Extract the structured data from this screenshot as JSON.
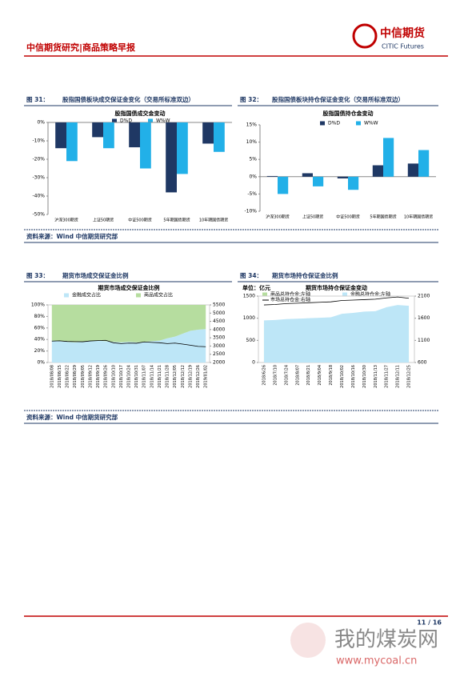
{
  "header": {
    "title": "中信期货研究|商品策略早报",
    "logo_cn": "中信期货",
    "logo_en": "CITIC Futures"
  },
  "figures": [
    {
      "label": "图 31：",
      "title": "股指国债板块成交保证金变化（交易所标准双边）"
    },
    {
      "label": "图 32：",
      "title": "股指国债板块持仓保证金变化（交易所标准双边）"
    },
    {
      "label": "图 33：",
      "title": "期货市场成交保证金比例"
    },
    {
      "label": "图 34：",
      "title": "期货市场持仓保证金比例"
    }
  ],
  "sources": [
    "资料来源：Wind  中信期货研究部",
    "资料来源：Wind  中信期货研究部"
  ],
  "page_number": "11 / 16",
  "watermark": {
    "cn": "我的煤炭网",
    "url": "www.mycoal.cn"
  },
  "chart_data": [
    {
      "type": "bar",
      "title": "股指国债成交金变动",
      "categories": [
        "沪深300期货",
        "上证50期货",
        "中证500期货",
        "5年期国债期货",
        "10年期国债期货"
      ],
      "series": [
        {
          "name": "D%D",
          "color": "#1f3864",
          "values": [
            -14,
            -8,
            -13.5,
            -38,
            -11.5
          ]
        },
        {
          "name": "W%W",
          "color": "#22b0e8",
          "values": [
            -21,
            -14,
            -25,
            -28,
            -16
          ]
        }
      ],
      "ylim": [
        -50,
        0
      ],
      "yticks": [
        {
          "value": -50,
          "label": "-50%"
        },
        {
          "value": -40,
          "label": "-40%"
        },
        {
          "value": -30,
          "label": "-30%"
        },
        {
          "value": -20,
          "label": "-20%"
        },
        {
          "value": -10,
          "label": "-10%"
        },
        {
          "value": 0,
          "label": "0%"
        }
      ]
    },
    {
      "type": "bar",
      "title": "股指国债持仓金变动",
      "categories": [
        "沪深300期货",
        "上证50期货",
        "中证500期货",
        "5年期国债期货",
        "10年期国债期货"
      ],
      "series": [
        {
          "name": "D%D",
          "color": "#1f3864",
          "values": [
            0.2,
            1,
            -0.5,
            3.3,
            3.8
          ]
        },
        {
          "name": "W%W",
          "color": "#22b0e8",
          "values": [
            -5,
            -2.8,
            -3.8,
            11.2,
            7.7
          ]
        }
      ],
      "ylim": [
        -10,
        15
      ],
      "yticks": [
        {
          "value": -10,
          "label": "-10%"
        },
        {
          "value": -5,
          "label": "-5%"
        },
        {
          "value": 0,
          "label": "0%"
        },
        {
          "value": 5,
          "label": "5%"
        },
        {
          "value": 10,
          "label": "10%"
        },
        {
          "value": 15,
          "label": "15%"
        }
      ]
    },
    {
      "type": "area",
      "title": "期货市场成交保证金比例",
      "stacked": true,
      "categories": [
        "2018/08/08",
        "2018/08/15",
        "2018/08/22",
        "2018/08/29",
        "2018/09/05",
        "2018/09/12",
        "2018/09/19",
        "2018/09/26",
        "2018/10/10",
        "2018/10/17",
        "2018/10/24",
        "2018/10/31",
        "2018/11/07",
        "2018/11/14",
        "2018/11/21",
        "2018/11/28",
        "2018/12/05",
        "2018/12/12",
        "2018/12/19",
        "2018/12/26",
        "2019/01/02"
      ],
      "series": [
        {
          "name": "金融成交占比",
          "color": "#bde6f7",
          "values": [
            38,
            37,
            36,
            35,
            36,
            37,
            38,
            37,
            36,
            35,
            36,
            35,
            36,
            37,
            38,
            42,
            45,
            50,
            55,
            57,
            58
          ]
        },
        {
          "name": "商品成交占比",
          "color": "#b6dd9f",
          "values": [
            62,
            63,
            64,
            65,
            64,
            63,
            62,
            63,
            64,
            65,
            64,
            65,
            64,
            63,
            62,
            58,
            55,
            50,
            45,
            43,
            42
          ]
        },
        {
          "kind": "line",
          "axis": "y2",
          "color": "#000000",
          "values": [
            3300,
            3320,
            3280,
            3270,
            3260,
            3310,
            3330,
            3350,
            3200,
            3150,
            3180,
            3170,
            3250,
            3220,
            3200,
            3150,
            3180,
            3120,
            3050,
            2980,
            2960
          ]
        }
      ],
      "ylim": [
        0,
        100
      ],
      "yticks": [
        {
          "value": 0,
          "label": "0%"
        },
        {
          "value": 20,
          "label": "20%"
        },
        {
          "value": 40,
          "label": "40%"
        },
        {
          "value": 60,
          "label": "60%"
        },
        {
          "value": 80,
          "label": "80%"
        },
        {
          "value": 100,
          "label": "100%"
        }
      ],
      "y2lim": [
        2000,
        5500
      ],
      "y2ticks": [
        2000,
        2500,
        3000,
        3500,
        4000,
        4500,
        5000,
        5500
      ]
    },
    {
      "type": "area",
      "title": "期货市场持仓保证金变动",
      "unit_label": "单位：亿元",
      "stacked": false,
      "categories": [
        "2018/6/26",
        "2018/7/10",
        "2018/7/24",
        "2018/8/07",
        "2018/8/21",
        "2018/9/04",
        "2018/9/18",
        "2018/10/02",
        "2018/10/16",
        "2018/10/30",
        "2018/11/13",
        "2018/11/27",
        "2018/12/11",
        "2018/12/25"
      ],
      "series": [
        {
          "name": "商品总持仓金:左轴",
          "color": "#b6dd9f",
          "values": [
            880,
            890,
            900,
            910,
            920,
            930,
            940,
            1000,
            1010,
            1020,
            1030,
            1100,
            1150,
            1120
          ]
        },
        {
          "name": "金融总持仓金:左轴",
          "color": "#bde6f7",
          "values": [
            950,
            960,
            980,
            990,
            1000,
            1010,
            1020,
            1100,
            1120,
            1150,
            1160,
            1250,
            1300,
            1280
          ]
        },
        {
          "name": "市场总持仓金:右轴",
          "kind": "line",
          "axis": "y2",
          "color": "#000000",
          "values": [
            1900,
            1910,
            1930,
            1940,
            1950,
            1960,
            1970,
            2000,
            2010,
            2020,
            2030,
            2060,
            2080,
            2050
          ]
        }
      ],
      "ylim": [
        0,
        1500
      ],
      "yticks": [
        0,
        500,
        1000,
        1500
      ],
      "y2lim": [
        600,
        2100
      ],
      "y2ticks": [
        600,
        1100,
        1600,
        2100
      ]
    }
  ]
}
